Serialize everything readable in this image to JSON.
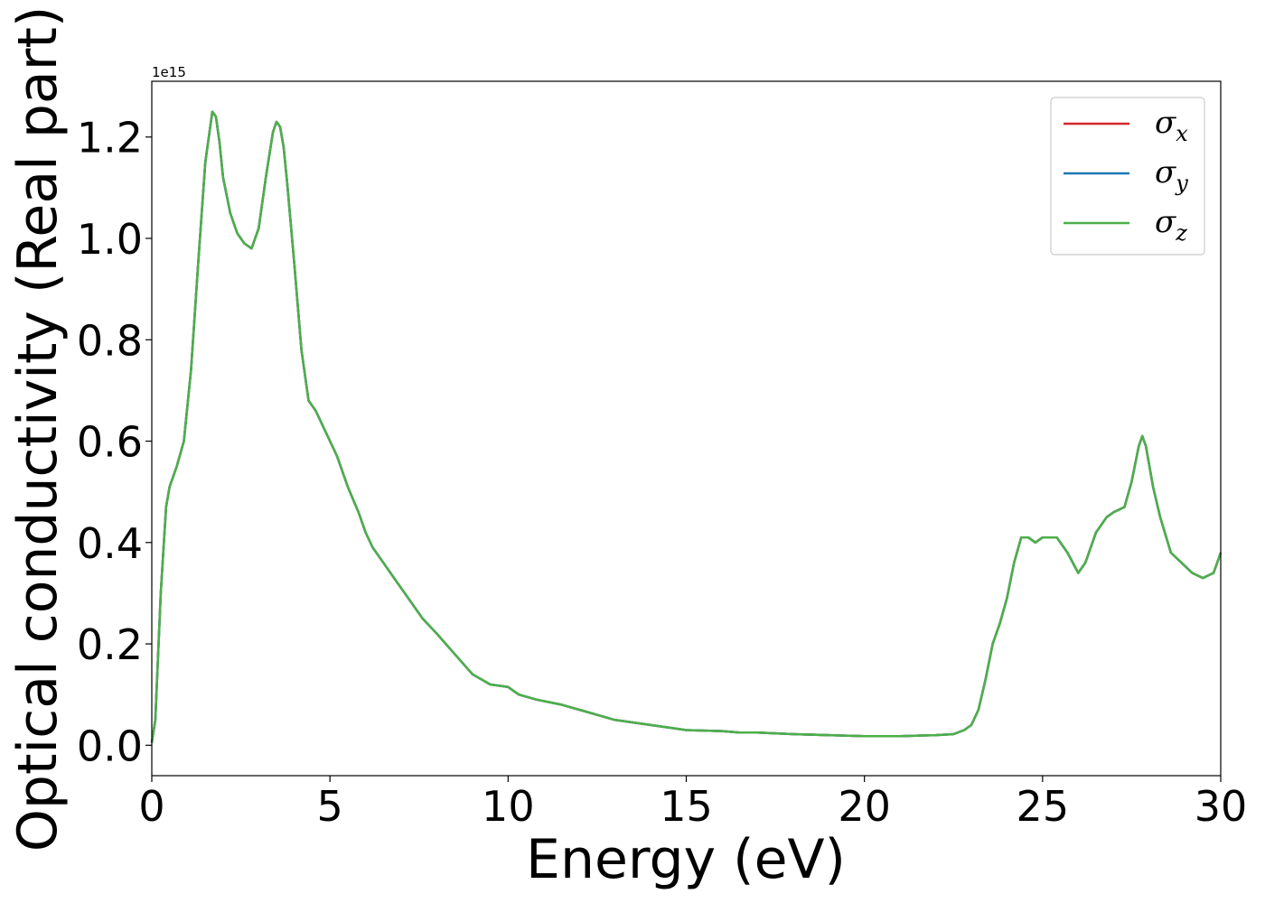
{
  "chart_data": {
    "type": "line",
    "title": "",
    "xlabel": "Energy (eV)",
    "ylabel": "Optical conductivity (Real part)",
    "y_offset_label": "1e15",
    "xlim": [
      0,
      30
    ],
    "ylim": [
      -0.06,
      1.31
    ],
    "xticks": [
      0,
      5,
      10,
      15,
      20,
      25,
      30
    ],
    "xtick_labels": [
      "0",
      "5",
      "10",
      "15",
      "20",
      "25",
      "30"
    ],
    "yticks": [
      0.0,
      0.2,
      0.4,
      0.6,
      0.8,
      1.0,
      1.2
    ],
    "ytick_labels": [
      "0.0",
      "0.2",
      "0.4",
      "0.6",
      "0.8",
      "1.0",
      "1.2"
    ],
    "grid": false,
    "legend_position": "top-right",
    "x": [
      0,
      0.1,
      0.25,
      0.4,
      0.5,
      0.7,
      0.9,
      1.1,
      1.3,
      1.5,
      1.7,
      1.8,
      1.9,
      2.0,
      2.2,
      2.4,
      2.6,
      2.8,
      3.0,
      3.2,
      3.4,
      3.5,
      3.6,
      3.7,
      3.8,
      4.0,
      4.2,
      4.4,
      4.6,
      4.8,
      5.0,
      5.2,
      5.5,
      5.8,
      6.0,
      6.2,
      6.5,
      6.8,
      7.0,
      7.3,
      7.6,
      8.0,
      8.5,
      9.0,
      9.5,
      10.0,
      10.3,
      10.8,
      11.5,
      12.0,
      13.0,
      14.0,
      15.0,
      16.0,
      16.5,
      17.0,
      18.0,
      19.0,
      20.0,
      21.0,
      22.0,
      22.5,
      22.8,
      23.0,
      23.2,
      23.4,
      23.6,
      23.8,
      24.0,
      24.2,
      24.4,
      24.6,
      24.8,
      25.0,
      25.4,
      25.7,
      26.0,
      26.2,
      26.5,
      26.8,
      27.0,
      27.3,
      27.5,
      27.7,
      27.8,
      27.9,
      28.1,
      28.3,
      28.6,
      28.9,
      29.2,
      29.5,
      29.8,
      30.0
    ],
    "series": [
      {
        "name": "σ",
        "subscript": "x",
        "color": "#d62728",
        "values": [
          0.005,
          0.05,
          0.3,
          0.47,
          0.51,
          0.55,
          0.6,
          0.74,
          0.95,
          1.15,
          1.25,
          1.24,
          1.19,
          1.12,
          1.05,
          1.01,
          0.99,
          0.98,
          1.02,
          1.12,
          1.21,
          1.23,
          1.22,
          1.18,
          1.11,
          0.95,
          0.78,
          0.68,
          0.66,
          0.63,
          0.6,
          0.57,
          0.51,
          0.46,
          0.42,
          0.39,
          0.36,
          0.33,
          0.31,
          0.28,
          0.25,
          0.22,
          0.18,
          0.14,
          0.12,
          0.115,
          0.1,
          0.09,
          0.08,
          0.07,
          0.05,
          0.04,
          0.03,
          0.028,
          0.025,
          0.025,
          0.022,
          0.02,
          0.018,
          0.018,
          0.02,
          0.022,
          0.03,
          0.04,
          0.07,
          0.13,
          0.2,
          0.24,
          0.29,
          0.36,
          0.41,
          0.41,
          0.4,
          0.41,
          0.41,
          0.38,
          0.34,
          0.36,
          0.42,
          0.45,
          0.46,
          0.47,
          0.52,
          0.59,
          0.61,
          0.59,
          0.51,
          0.45,
          0.38,
          0.36,
          0.34,
          0.33,
          0.34,
          0.38
        ]
      },
      {
        "name": "σ",
        "subscript": "y",
        "color": "#1f77b4",
        "values": [
          0.005,
          0.05,
          0.3,
          0.47,
          0.51,
          0.55,
          0.6,
          0.74,
          0.95,
          1.15,
          1.25,
          1.24,
          1.19,
          1.12,
          1.05,
          1.01,
          0.99,
          0.98,
          1.02,
          1.12,
          1.21,
          1.23,
          1.22,
          1.18,
          1.11,
          0.95,
          0.78,
          0.68,
          0.66,
          0.63,
          0.6,
          0.57,
          0.51,
          0.46,
          0.42,
          0.39,
          0.36,
          0.33,
          0.31,
          0.28,
          0.25,
          0.22,
          0.18,
          0.14,
          0.12,
          0.115,
          0.1,
          0.09,
          0.08,
          0.07,
          0.05,
          0.04,
          0.03,
          0.028,
          0.025,
          0.025,
          0.022,
          0.02,
          0.018,
          0.018,
          0.02,
          0.022,
          0.03,
          0.04,
          0.07,
          0.13,
          0.2,
          0.24,
          0.29,
          0.36,
          0.41,
          0.41,
          0.4,
          0.41,
          0.41,
          0.38,
          0.34,
          0.36,
          0.42,
          0.45,
          0.46,
          0.47,
          0.52,
          0.59,
          0.61,
          0.59,
          0.51,
          0.45,
          0.38,
          0.36,
          0.34,
          0.33,
          0.34,
          0.38
        ]
      },
      {
        "name": "σ",
        "subscript": "z",
        "color": "#4daf4a",
        "values": [
          0.005,
          0.05,
          0.3,
          0.47,
          0.51,
          0.55,
          0.6,
          0.74,
          0.95,
          1.15,
          1.25,
          1.24,
          1.19,
          1.12,
          1.05,
          1.01,
          0.99,
          0.98,
          1.02,
          1.12,
          1.21,
          1.23,
          1.22,
          1.18,
          1.11,
          0.95,
          0.78,
          0.68,
          0.66,
          0.63,
          0.6,
          0.57,
          0.51,
          0.46,
          0.42,
          0.39,
          0.36,
          0.33,
          0.31,
          0.28,
          0.25,
          0.22,
          0.18,
          0.14,
          0.12,
          0.115,
          0.1,
          0.09,
          0.08,
          0.07,
          0.05,
          0.04,
          0.03,
          0.028,
          0.025,
          0.025,
          0.022,
          0.02,
          0.018,
          0.018,
          0.02,
          0.022,
          0.03,
          0.04,
          0.07,
          0.13,
          0.2,
          0.24,
          0.29,
          0.36,
          0.41,
          0.41,
          0.4,
          0.41,
          0.41,
          0.38,
          0.34,
          0.36,
          0.42,
          0.45,
          0.46,
          0.47,
          0.52,
          0.59,
          0.61,
          0.59,
          0.51,
          0.45,
          0.38,
          0.36,
          0.34,
          0.33,
          0.34,
          0.38
        ]
      }
    ]
  }
}
